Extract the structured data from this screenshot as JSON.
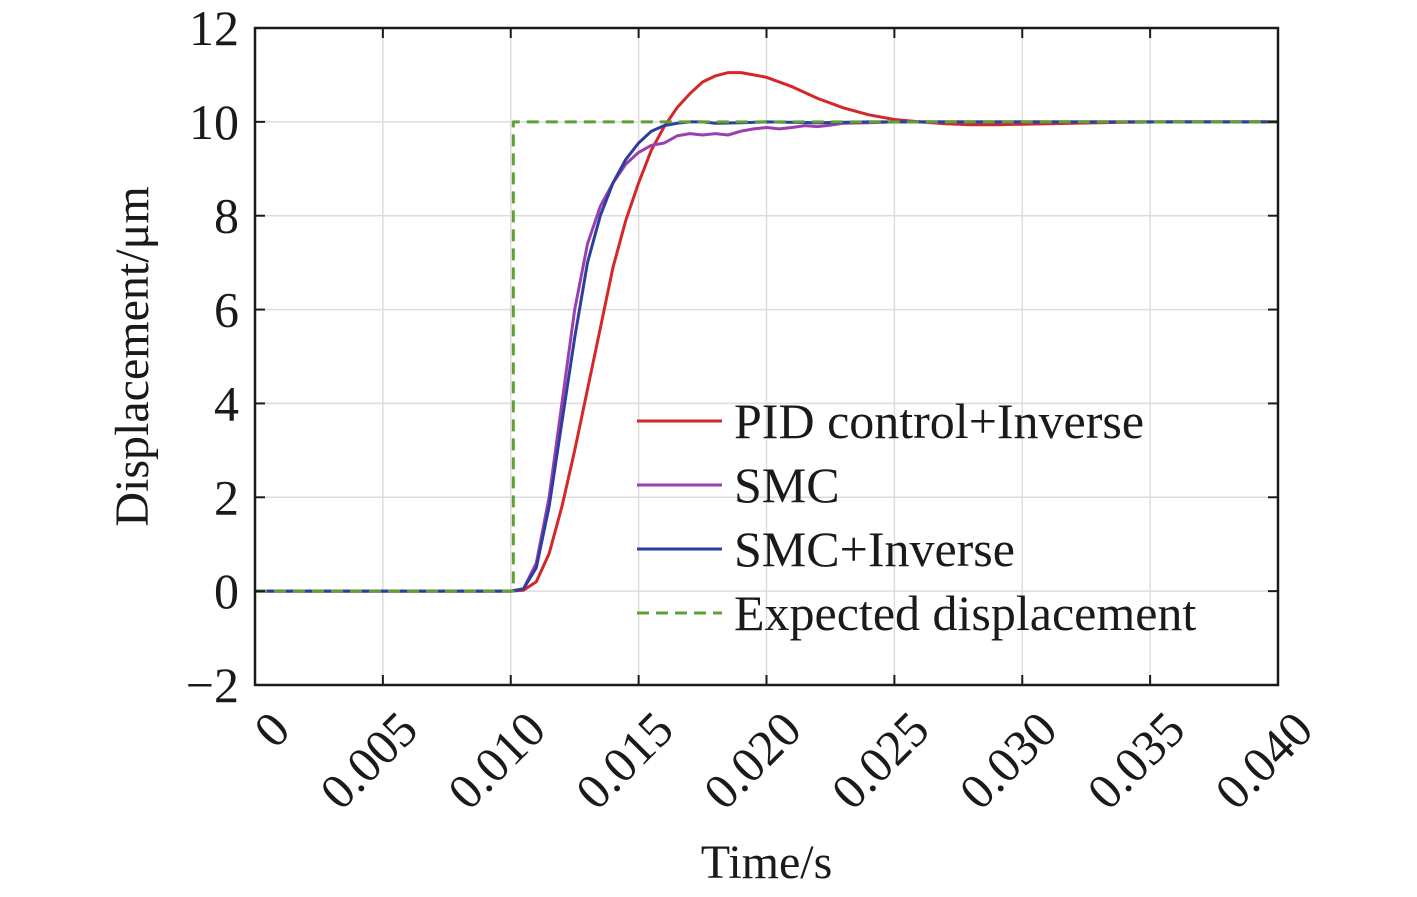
{
  "chart_data": {
    "type": "line",
    "xlabel": "Time/s",
    "ylabel": "Displacement/μm",
    "xlim": [
      0,
      0.04
    ],
    "ylim": [
      -2,
      12
    ],
    "grid": true,
    "legend_position": "bottom-right",
    "x_ticks": [
      {
        "value": 0,
        "label": "0"
      },
      {
        "value": 0.005,
        "label": "0.005"
      },
      {
        "value": 0.01,
        "label": "0.010"
      },
      {
        "value": 0.015,
        "label": "0.015"
      },
      {
        "value": 0.02,
        "label": "0.020"
      },
      {
        "value": 0.025,
        "label": "0.025"
      },
      {
        "value": 0.03,
        "label": "0.030"
      },
      {
        "value": 0.035,
        "label": "0.035"
      },
      {
        "value": 0.04,
        "label": "0.040"
      }
    ],
    "y_ticks": [
      {
        "value": -2,
        "label": "−2"
      },
      {
        "value": 0,
        "label": "0"
      },
      {
        "value": 2,
        "label": "2"
      },
      {
        "value": 4,
        "label": "4"
      },
      {
        "value": 6,
        "label": "6"
      },
      {
        "value": 8,
        "label": "8"
      },
      {
        "value": 10,
        "label": "10"
      },
      {
        "value": 12,
        "label": "12"
      }
    ],
    "series": [
      {
        "name": "PID control+Inverse",
        "color": "#d62728",
        "style": "solid",
        "x": [
          0,
          0.01,
          0.0105,
          0.011,
          0.0115,
          0.012,
          0.0125,
          0.013,
          0.0135,
          0.014,
          0.0145,
          0.015,
          0.0155,
          0.016,
          0.0165,
          0.017,
          0.0175,
          0.018,
          0.0185,
          0.019,
          0.0195,
          0.02,
          0.021,
          0.022,
          0.023,
          0.024,
          0.025,
          0.026,
          0.027,
          0.028,
          0.029,
          0.03,
          0.032,
          0.034,
          0.036,
          0.038,
          0.04
        ],
        "y": [
          0,
          0,
          0.02,
          0.2,
          0.8,
          1.8,
          3.0,
          4.3,
          5.6,
          6.9,
          7.9,
          8.7,
          9.4,
          9.9,
          10.3,
          10.6,
          10.85,
          10.98,
          11.05,
          11.05,
          11.0,
          10.95,
          10.75,
          10.5,
          10.3,
          10.15,
          10.05,
          10.0,
          9.96,
          9.94,
          9.94,
          9.95,
          9.97,
          9.99,
          10.0,
          10.0,
          10.0
        ]
      },
      {
        "name": "SMC",
        "color": "#9b3fb0",
        "style": "solid",
        "x": [
          0,
          0.01,
          0.0105,
          0.011,
          0.0115,
          0.012,
          0.0125,
          0.013,
          0.0135,
          0.014,
          0.0145,
          0.015,
          0.0155,
          0.016,
          0.0165,
          0.017,
          0.0175,
          0.018,
          0.0185,
          0.019,
          0.0195,
          0.02,
          0.0205,
          0.021,
          0.0215,
          0.022,
          0.0225,
          0.023,
          0.024,
          0.025,
          0.026,
          0.028,
          0.03,
          0.032,
          0.035,
          0.04
        ],
        "y": [
          0,
          0,
          0.05,
          0.6,
          2.0,
          4.0,
          6.0,
          7.4,
          8.2,
          8.7,
          9.1,
          9.35,
          9.5,
          9.55,
          9.7,
          9.75,
          9.72,
          9.75,
          9.72,
          9.8,
          9.85,
          9.88,
          9.85,
          9.88,
          9.92,
          9.9,
          9.93,
          9.97,
          9.98,
          10.0,
          10.0,
          10.0,
          10.0,
          10.0,
          10.0,
          10.0
        ]
      },
      {
        "name": "SMC+Inverse",
        "color": "#2c3e9e",
        "style": "solid",
        "x": [
          0,
          0.01,
          0.0105,
          0.011,
          0.0115,
          0.012,
          0.0125,
          0.013,
          0.0135,
          0.014,
          0.0145,
          0.015,
          0.0155,
          0.016,
          0.0165,
          0.017,
          0.0175,
          0.018,
          0.019,
          0.02,
          0.022,
          0.024,
          0.026,
          0.03,
          0.035,
          0.04
        ],
        "y": [
          0,
          0,
          0.05,
          0.5,
          1.8,
          3.6,
          5.4,
          7.0,
          8.0,
          8.7,
          9.2,
          9.55,
          9.8,
          9.92,
          9.97,
          10.0,
          10.0,
          9.97,
          9.98,
          10.0,
          9.98,
          10.0,
          10.0,
          10.0,
          10.0,
          10.0
        ]
      },
      {
        "name": "Expected displacement",
        "color": "#5fa033",
        "style": "dashed",
        "x": [
          0,
          0.0101,
          0.0101,
          0.04
        ],
        "y": [
          0,
          0,
          10,
          10
        ]
      }
    ]
  }
}
